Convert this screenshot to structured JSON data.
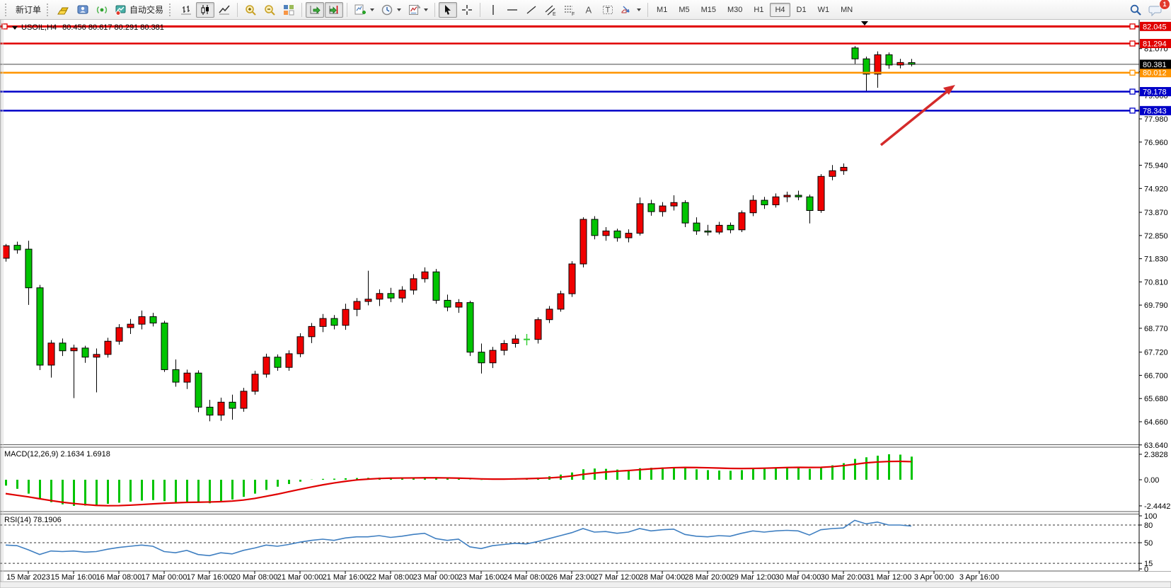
{
  "toolbar": {
    "new_order": "新订单",
    "auto_trading": "自动交易",
    "timeframes": [
      "M1",
      "M5",
      "M15",
      "M30",
      "H1",
      "H4",
      "D1",
      "W1",
      "MN"
    ],
    "active_timeframe": "H4",
    "notification_badge": "1",
    "icon_labels": {
      "text_tool": "A",
      "label_tool": "T",
      "channel_sub": "E",
      "fibo_sub": "F"
    }
  },
  "chart": {
    "symbol_title": "USOIL,H4",
    "ohlc_text": "80.456 80.617 80.291 80.381",
    "current_price": "80.381",
    "price_ticks": [
      "81.070",
      "80.050",
      "79.000",
      "77.980",
      "76.960",
      "75.940",
      "74.920",
      "73.870",
      "72.850",
      "71.830",
      "70.810",
      "69.790",
      "68.770",
      "67.720",
      "66.700",
      "65.680",
      "64.660",
      "63.640"
    ],
    "hlines": [
      {
        "price": 82.045,
        "label": "82.045",
        "color": "#e00000"
      },
      {
        "price": 81.294,
        "label": "81.294",
        "color": "#e00000"
      },
      {
        "price": 80.012,
        "label": "80.012",
        "color": "#ff9400"
      },
      {
        "price": 79.178,
        "label": "79.178",
        "color": "#0000c8"
      },
      {
        "price": 78.343,
        "label": "78.343",
        "color": "#0000c8"
      }
    ],
    "time_labels": [
      "15 Mar 2023",
      "15 Mar 16:00",
      "16 Mar 08:00",
      "17 Mar 00:00",
      "17 Mar 16:00",
      "20 Mar 08:00",
      "21 Mar 00:00",
      "21 Mar 16:00",
      "22 Mar 08:00",
      "23 Mar 00:00",
      "23 Mar 16:00",
      "24 Mar 08:00",
      "26 Mar 23:00",
      "27 Mar 12:00",
      "28 Mar 04:00",
      "28 Mar 20:00",
      "29 Mar 12:00",
      "30 Mar 04:00",
      "30 Mar 20:00",
      "31 Mar 12:00",
      "3 Apr 00:00",
      "3 Apr 16:00"
    ],
    "colors": {
      "bull": "#f00000",
      "bear": "#00c400",
      "doji": "#32cd32",
      "wick": "#000000",
      "bid_line": "#444444",
      "arrow": "#d42a2a",
      "rsi": "#3f7fc1",
      "macd_hist": "#00c400",
      "macd_signal": "#e00000"
    }
  },
  "chart_data": {
    "type": "candlestick",
    "symbol": "USOIL",
    "timeframe": "H4",
    "ylim": [
      63.64,
      82.34
    ],
    "candles_ohlc": [
      [
        71.85,
        72.48,
        71.7,
        72.4
      ],
      [
        72.42,
        72.58,
        72.05,
        72.22
      ],
      [
        72.25,
        72.62,
        69.8,
        70.55
      ],
      [
        70.55,
        70.68,
        66.93,
        67.15
      ],
      [
        67.15,
        68.25,
        66.6,
        68.12
      ],
      [
        68.12,
        68.32,
        67.55,
        67.78
      ],
      [
        67.78,
        68.05,
        65.7,
        67.9
      ],
      [
        67.9,
        68.0,
        67.25,
        67.5
      ],
      [
        67.5,
        67.88,
        65.95,
        67.62
      ],
      [
        67.62,
        68.35,
        67.48,
        68.2
      ],
      [
        68.2,
        68.95,
        68.05,
        68.8
      ],
      [
        68.8,
        69.18,
        68.52,
        68.95
      ],
      [
        68.95,
        69.55,
        68.72,
        69.28
      ],
      [
        69.28,
        69.45,
        68.85,
        69.0
      ],
      [
        69.0,
        69.1,
        66.85,
        66.95
      ],
      [
        66.95,
        67.4,
        66.2,
        66.4
      ],
      [
        66.4,
        66.95,
        66.1,
        66.8
      ],
      [
        66.8,
        66.92,
        65.08,
        65.3
      ],
      [
        65.3,
        65.62,
        64.68,
        64.95
      ],
      [
        64.95,
        65.72,
        64.7,
        65.52
      ],
      [
        65.52,
        65.85,
        64.75,
        65.25
      ],
      [
        65.25,
        66.15,
        65.1,
        66.0
      ],
      [
        66.0,
        66.9,
        65.85,
        66.75
      ],
      [
        66.75,
        67.65,
        66.6,
        67.5
      ],
      [
        67.5,
        67.62,
        66.9,
        67.05
      ],
      [
        67.05,
        67.8,
        66.9,
        67.65
      ],
      [
        67.65,
        68.55,
        67.5,
        68.4
      ],
      [
        68.4,
        69.0,
        68.12,
        68.85
      ],
      [
        68.85,
        69.4,
        68.6,
        69.2
      ],
      [
        69.2,
        69.35,
        68.72,
        68.9
      ],
      [
        68.9,
        69.85,
        68.7,
        69.6
      ],
      [
        69.6,
        70.1,
        69.3,
        69.95
      ],
      [
        69.95,
        71.3,
        69.78,
        70.05
      ],
      [
        70.05,
        70.48,
        69.75,
        70.3
      ],
      [
        70.3,
        70.55,
        69.92,
        70.1
      ],
      [
        70.1,
        70.62,
        69.9,
        70.45
      ],
      [
        70.45,
        71.15,
        70.25,
        70.95
      ],
      [
        70.95,
        71.45,
        70.78,
        71.25
      ],
      [
        71.25,
        71.38,
        69.85,
        70.0
      ],
      [
        70.0,
        70.25,
        69.52,
        69.7
      ],
      [
        69.7,
        70.05,
        69.45,
        69.9
      ],
      [
        69.9,
        69.98,
        67.55,
        67.72
      ],
      [
        67.72,
        68.1,
        66.78,
        67.25
      ],
      [
        67.25,
        67.95,
        67.02,
        67.8
      ],
      [
        67.8,
        68.25,
        67.58,
        68.1
      ],
      [
        68.1,
        68.48,
        67.92,
        68.3
      ],
      [
        68.28,
        68.52,
        68.02,
        68.28
      ],
      [
        68.28,
        69.25,
        68.1,
        69.15
      ],
      [
        69.15,
        69.75,
        69.0,
        69.61
      ],
      [
        69.61,
        70.42,
        69.5,
        70.29
      ],
      [
        70.29,
        71.72,
        70.15,
        71.6
      ],
      [
        71.6,
        73.65,
        71.45,
        73.56
      ],
      [
        73.56,
        73.7,
        72.68,
        72.85
      ],
      [
        72.85,
        73.22,
        72.62,
        73.05
      ],
      [
        73.05,
        73.15,
        72.58,
        72.75
      ],
      [
        72.75,
        73.12,
        72.55,
        72.95
      ],
      [
        72.95,
        74.52,
        72.85,
        74.25
      ],
      [
        74.25,
        74.42,
        73.72,
        73.9
      ],
      [
        73.9,
        74.32,
        73.68,
        74.15
      ],
      [
        74.15,
        74.62,
        73.95,
        74.3
      ],
      [
        74.3,
        74.4,
        73.22,
        73.4
      ],
      [
        73.4,
        73.65,
        72.88,
        73.05
      ],
      [
        73.05,
        73.32,
        72.85,
        73.0
      ],
      [
        73.0,
        73.45,
        72.9,
        73.3
      ],
      [
        73.3,
        73.42,
        72.95,
        73.1
      ],
      [
        73.1,
        73.95,
        73.0,
        73.85
      ],
      [
        73.85,
        74.62,
        73.7,
        74.4
      ],
      [
        74.4,
        74.55,
        74.02,
        74.2
      ],
      [
        74.2,
        74.7,
        74.08,
        74.55
      ],
      [
        74.55,
        74.78,
        74.32,
        74.62
      ],
      [
        74.62,
        74.82,
        74.4,
        74.55
      ],
      [
        74.55,
        74.65,
        73.38,
        73.95
      ],
      [
        73.95,
        75.55,
        73.85,
        75.45
      ],
      [
        75.45,
        75.95,
        75.28,
        75.7
      ],
      [
        75.7,
        76.02,
        75.52,
        75.85
      ],
      [
        81.1,
        81.18,
        80.4,
        80.62
      ],
      [
        80.62,
        80.72,
        79.2,
        79.95
      ],
      [
        79.95,
        80.95,
        79.35,
        80.8
      ],
      [
        80.8,
        80.9,
        80.18,
        80.35
      ],
      [
        80.35,
        80.62,
        80.2,
        80.46
      ],
      [
        80.456,
        80.617,
        80.291,
        80.381
      ]
    ],
    "macd": {
      "label": "MACD(12,26,9) 2.1634 1.6918",
      "scale_labels": [
        "2.3828",
        "0.00",
        "-2.4442"
      ],
      "histogram": [
        -0.55,
        -0.85,
        -1.3,
        -1.8,
        -2.1,
        -2.3,
        -2.4442,
        -2.42,
        -2.35,
        -2.25,
        -2.15,
        -2.05,
        -1.95,
        -1.9,
        -2.0,
        -2.1,
        -2.05,
        -2.15,
        -2.2,
        -2.05,
        -1.85,
        -1.6,
        -1.3,
        -0.95,
        -0.65,
        -0.4,
        -0.18,
        0.02,
        0.08,
        0.1,
        0.14,
        0.16,
        0.18,
        0.2,
        0.18,
        0.16,
        0.18,
        0.22,
        0.16,
        0.1,
        0.08,
        0.02,
        -0.02,
        0.02,
        0.06,
        0.1,
        0.14,
        0.2,
        0.32,
        0.48,
        0.68,
        0.98,
        1.05,
        1.02,
        0.95,
        0.92,
        1.08,
        1.12,
        1.15,
        1.18,
        1.08,
        0.98,
        0.9,
        0.86,
        0.84,
        0.9,
        1.0,
        1.05,
        1.1,
        1.14,
        1.12,
        1.02,
        1.18,
        1.35,
        1.55,
        1.95,
        2.1,
        2.25,
        2.3828,
        2.35,
        2.1634
      ],
      "signal": [
        -1.3,
        -1.45,
        -1.6,
        -1.78,
        -1.95,
        -2.1,
        -2.22,
        -2.32,
        -2.4,
        -2.43,
        -2.42,
        -2.38,
        -2.32,
        -2.26,
        -2.2,
        -2.16,
        -2.12,
        -2.1,
        -2.08,
        -2.05,
        -2.0,
        -1.9,
        -1.75,
        -1.55,
        -1.35,
        -1.12,
        -0.9,
        -0.68,
        -0.48,
        -0.3,
        -0.15,
        -0.02,
        0.06,
        0.12,
        0.15,
        0.16,
        0.17,
        0.18,
        0.18,
        0.17,
        0.15,
        0.12,
        0.08,
        0.06,
        0.06,
        0.08,
        0.1,
        0.13,
        0.17,
        0.24,
        0.35,
        0.5,
        0.62,
        0.72,
        0.8,
        0.86,
        0.94,
        1.02,
        1.08,
        1.13,
        1.15,
        1.14,
        1.12,
        1.09,
        1.06,
        1.05,
        1.06,
        1.08,
        1.11,
        1.14,
        1.16,
        1.15,
        1.16,
        1.22,
        1.32,
        1.45,
        1.58,
        1.66,
        1.71,
        1.72,
        1.6918
      ]
    },
    "rsi": {
      "label": "RSI(14) 78.1906",
      "scale_labels": [
        "100",
        "80",
        "50",
        "15",
        "0"
      ],
      "levels": [
        80,
        50,
        15
      ],
      "values": [
        46,
        45,
        38,
        30,
        36,
        35,
        36,
        34,
        35,
        39,
        42,
        44,
        46,
        44,
        35,
        33,
        37,
        30,
        28,
        33,
        31,
        37,
        41,
        46,
        44,
        47,
        51,
        54,
        56,
        54,
        58,
        60,
        60,
        62,
        59,
        61,
        64,
        66,
        57,
        54,
        56,
        43,
        40,
        45,
        47,
        49,
        48,
        52,
        57,
        62,
        67,
        74,
        68,
        69,
        66,
        68,
        74,
        70,
        72,
        73,
        64,
        61,
        60,
        62,
        61,
        66,
        70,
        68,
        70,
        71,
        70,
        63,
        72,
        74,
        75,
        88,
        82,
        85,
        80,
        80,
        78.19
      ]
    }
  }
}
